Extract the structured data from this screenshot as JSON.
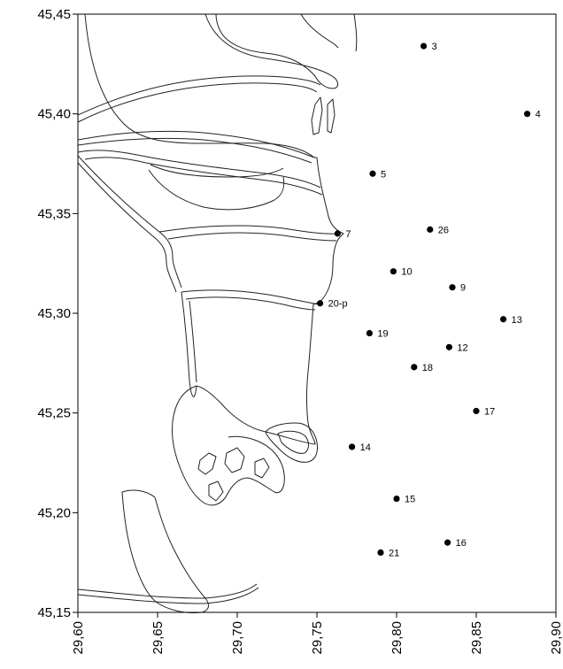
{
  "chart_data": {
    "type": "scatter",
    "title": "",
    "xlabel": "",
    "ylabel": "",
    "xlim": [
      29.6,
      29.9
    ],
    "ylim": [
      45.15,
      45.45
    ],
    "grid": false,
    "x_ticks": [
      29.6,
      29.65,
      29.7,
      29.75,
      29.8,
      29.85,
      29.9
    ],
    "y_ticks": [
      45.15,
      45.2,
      45.25,
      45.3,
      45.35,
      45.4,
      45.45
    ],
    "x_tick_labels": [
      "29,60",
      "29,65",
      "29,70",
      "29,75",
      "29,80",
      "29,85",
      "29,90"
    ],
    "y_tick_labels": [
      "45,15",
      "45,20",
      "45,25",
      "45,30",
      "45,35",
      "45,40",
      "45,45"
    ],
    "points": [
      {
        "label": "3",
        "x": 29.817,
        "y": 45.434
      },
      {
        "label": "4",
        "x": 29.882,
        "y": 45.4
      },
      {
        "label": "5",
        "x": 29.785,
        "y": 45.37
      },
      {
        "label": "7",
        "x": 29.763,
        "y": 45.34
      },
      {
        "label": "26",
        "x": 29.821,
        "y": 45.342
      },
      {
        "label": "10",
        "x": 29.798,
        "y": 45.321
      },
      {
        "label": "9",
        "x": 29.835,
        "y": 45.313
      },
      {
        "label": "20-p",
        "x": 29.752,
        "y": 45.305
      },
      {
        "label": "13",
        "x": 29.867,
        "y": 45.297
      },
      {
        "label": "19",
        "x": 29.783,
        "y": 45.29
      },
      {
        "label": "12",
        "x": 29.833,
        "y": 45.283
      },
      {
        "label": "18",
        "x": 29.811,
        "y": 45.273
      },
      {
        "label": "17",
        "x": 29.85,
        "y": 45.251
      },
      {
        "label": "14",
        "x": 29.772,
        "y": 45.233
      },
      {
        "label": "15",
        "x": 29.8,
        "y": 45.207
      },
      {
        "label": "16",
        "x": 29.832,
        "y": 45.185
      },
      {
        "label": "21",
        "x": 29.79,
        "y": 45.18
      }
    ]
  }
}
